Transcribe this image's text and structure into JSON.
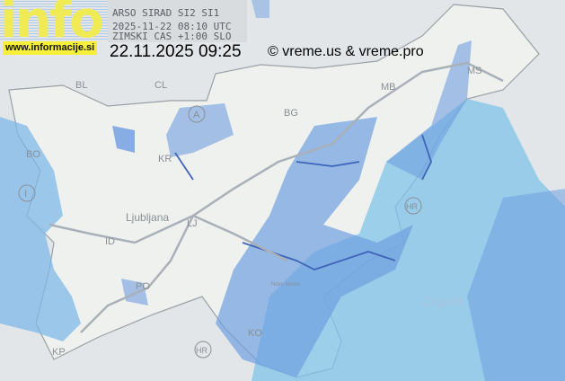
{
  "header": {
    "source": "ARSO SIRAD SI2 SI1",
    "utc_time": "2025-11-22 08:10 UTC",
    "timezone": "ZIMSKI CAS +1:00 SLO",
    "local_timestamp": "22.11.2025 09:25",
    "copyright": "© vreme.us & vreme.pro"
  },
  "logo": {
    "text": "info",
    "url": "www.informacije.si",
    "color": "#f5ef3a"
  },
  "map": {
    "labels": [
      "BL",
      "CL",
      "A",
      "BG",
      "KR",
      "BO",
      "I",
      "Ljubljana",
      "LJ",
      "ID",
      "PO",
      "KP",
      "KO",
      "HR",
      "HR",
      "Novo Mesto",
      "MB",
      "MS",
      "Zagreb"
    ],
    "colors": {
      "background": "#e6e8ea",
      "land": "#eef0ee",
      "rain_light": "#7fc3e8",
      "rain_medium": "#6f9fe0",
      "river": "#3f64b8"
    }
  }
}
